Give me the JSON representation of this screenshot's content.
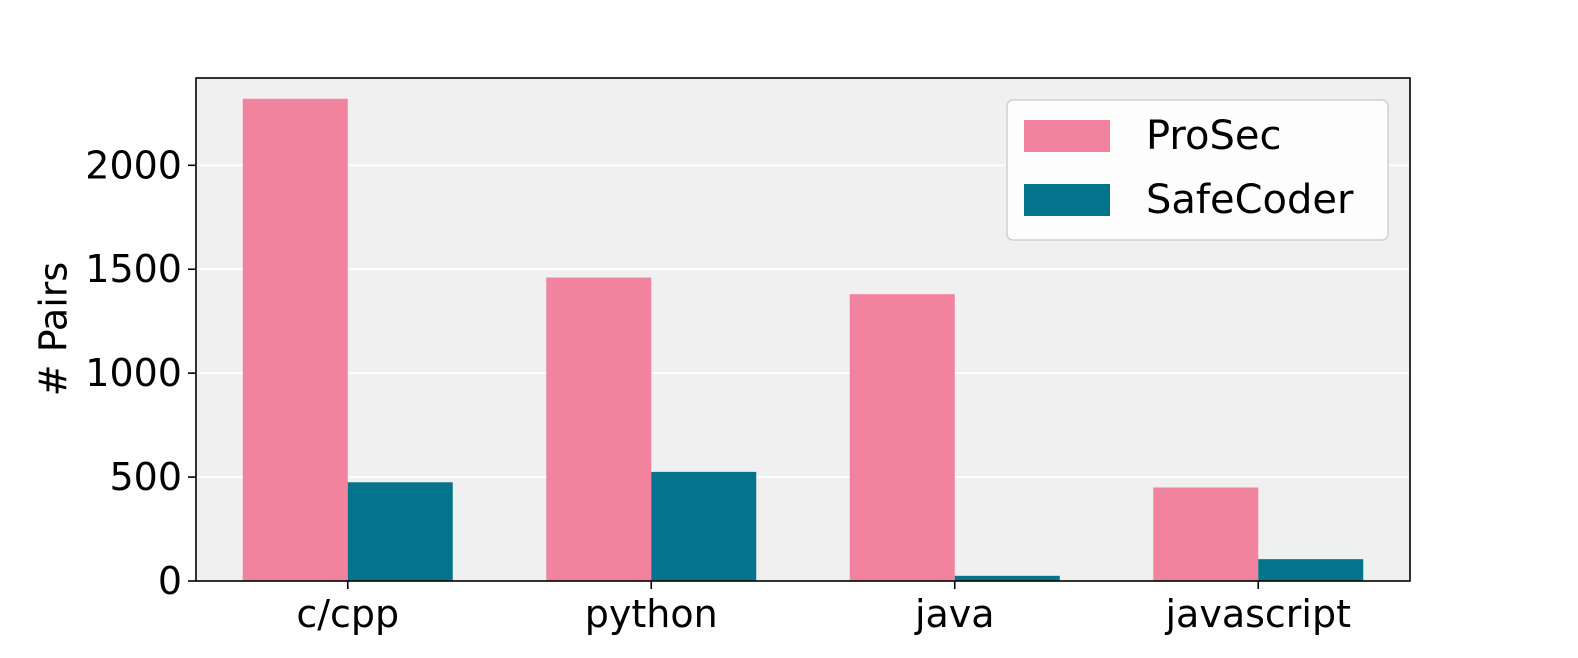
{
  "chart_data": {
    "type": "bar",
    "title": "",
    "xlabel": "",
    "ylabel": "# Pairs",
    "categories": [
      "c/cpp",
      "python",
      "java",
      "javascript"
    ],
    "series": [
      {
        "name": "ProSec",
        "color": "#f2839f",
        "values": [
          2320,
          1460,
          1380,
          450
        ]
      },
      {
        "name": "SafeCoder",
        "color": "#04748c",
        "values": [
          475,
          525,
          25,
          105
        ]
      }
    ],
    "ylim": [
      0,
      2420
    ],
    "yticks": [
      0,
      500,
      1000,
      1500,
      2000
    ],
    "grid": true,
    "legend_position": "top-right",
    "plot_background": "#f0f0f0"
  }
}
